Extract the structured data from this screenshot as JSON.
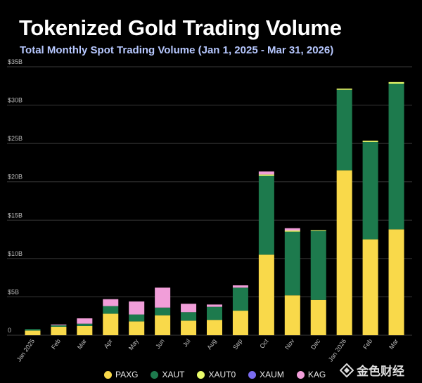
{
  "header": {
    "title": "Tokenized Gold Trading Volume",
    "subtitle": "Total Monthly Spot Trading Volume (Jan 1, 2025 - Mar 31, 2026)"
  },
  "watermark": {
    "text": "金色财经"
  },
  "chart_data": {
    "type": "bar",
    "stacked": true,
    "categories": [
      "Jan 2025",
      "Feb",
      "Mar",
      "Apr",
      "May",
      "Jun",
      "Jul",
      "Aug",
      "Sep",
      "Oct",
      "Nov",
      "Dec",
      "Jan 2026",
      "Feb",
      "Mar"
    ],
    "y_ticks": [
      "0",
      "$5B",
      "$10B",
      "$15B",
      "$20B",
      "$25B",
      "$30B",
      "$35B"
    ],
    "ylim": [
      0,
      35
    ],
    "grid": true,
    "legend_placement": "bottom",
    "series": [
      {
        "name": "PAXG",
        "color": "#f9d94a",
        "values": [
          0.6,
          1.1,
          1.2,
          2.8,
          1.8,
          2.6,
          1.9,
          2.0,
          3.2,
          10.5,
          5.2,
          4.6,
          21.5,
          12.5,
          13.8
        ]
      },
      {
        "name": "XAUT",
        "color": "#1d7a4d",
        "values": [
          0.2,
          0.2,
          0.3,
          1.0,
          0.9,
          1.0,
          1.1,
          1.7,
          3.0,
          10.3,
          8.3,
          9.0,
          10.5,
          12.7,
          19.0
        ]
      },
      {
        "name": "XAUT0",
        "color": "#eafc6a",
        "values": [
          0.0,
          0.0,
          0.0,
          0.0,
          0.0,
          0.0,
          0.0,
          0.0,
          0.0,
          0.15,
          0.15,
          0.1,
          0.15,
          0.15,
          0.2
        ]
      },
      {
        "name": "XAUM",
        "color": "#7b6cf0",
        "values": [
          0.0,
          0.0,
          0.0,
          0.0,
          0.0,
          0.0,
          0.0,
          0.0,
          0.0,
          0.0,
          0.0,
          0.0,
          0.0,
          0.0,
          0.0
        ]
      },
      {
        "name": "KAG",
        "color": "#f19ed9",
        "values": [
          0.0,
          0.1,
          0.7,
          0.9,
          1.7,
          2.6,
          1.1,
          0.3,
          0.3,
          0.4,
          0.3,
          0.0,
          0.0,
          0.0,
          0.0
        ]
      }
    ]
  }
}
